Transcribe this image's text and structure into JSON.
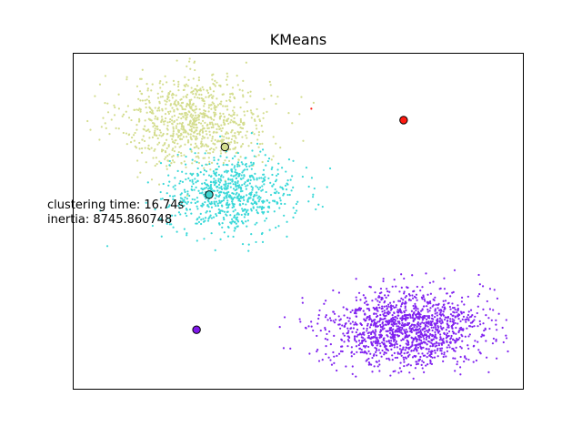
{
  "chart_data": {
    "type": "scatter",
    "title": "KMeans",
    "xlabel": "",
    "ylabel": "",
    "axes_ticks": false,
    "grid": false,
    "annotations": {
      "clustering_time": "clustering time: 16.74s",
      "inertia": "inertia: 8745.860748"
    },
    "clusters": [
      {
        "color": "#d4dd8f",
        "center": {
          "x": 0.337,
          "y": 0.721
        },
        "cloud": {
          "cx": 0.27,
          "cy": 0.8,
          "sx": 0.082,
          "sy": 0.068,
          "n": 900
        },
        "center_fill": "#d4dd8f"
      },
      {
        "color": "#39d8d8",
        "center": {
          "x": 0.302,
          "y": 0.579
        },
        "cloud": {
          "cx": 0.35,
          "cy": 0.58,
          "sx": 0.07,
          "sy": 0.055,
          "n": 750
        },
        "center_fill": "#3fd5d0"
      },
      {
        "color": "#8022f0",
        "center": {
          "x": 0.274,
          "y": 0.177
        },
        "cloud": {
          "cx": 0.74,
          "cy": 0.18,
          "sx": 0.085,
          "sy": 0.058,
          "n": 1400
        },
        "center_fill": "#7f18ea"
      },
      {
        "color": "#ff1a10",
        "center": {
          "x": 0.734,
          "y": 0.801
        },
        "points": [
          {
            "x": 0.529,
            "y": 0.835
          }
        ],
        "center_fill": "#ff1a10"
      }
    ]
  }
}
